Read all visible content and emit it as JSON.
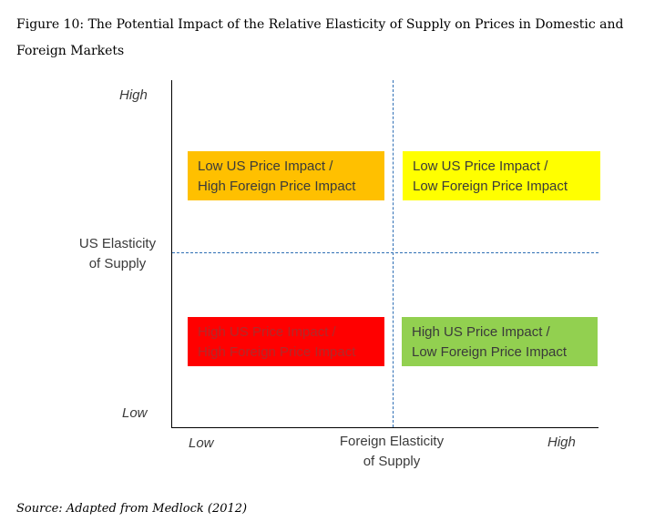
{
  "caption": {
    "line1": "Figure 10: The Potential Impact of the Relative Elasticity of Supply on Prices in Domestic and",
    "line2": "Foreign Markets"
  },
  "y_axis": {
    "high": "High",
    "title_line1": "US Elasticity",
    "title_line2": "of Supply",
    "low": "Low"
  },
  "x_axis": {
    "low": "Low",
    "title_line1": "Foreign Elasticity",
    "title_line2": "of Supply",
    "high": "High"
  },
  "quadrants": [
    {
      "position": "top-left",
      "line1": "Low US Price Impact /",
      "line2": "High Foreign Price Impact",
      "color": "#ffc000",
      "text_color": "#3a3a3a"
    },
    {
      "position": "top-right",
      "line1": "Low US Price Impact /",
      "line2": "Low Foreign Price Impact",
      "color": "#ffff00",
      "text_color": "#3a3a3a"
    },
    {
      "position": "bottom-left",
      "line1": "High US Price Impact /",
      "line2": "High Foreign Price Impact",
      "color": "#ff0000",
      "text_color": "#b02a2a"
    },
    {
      "position": "bottom-right",
      "line1": "High US Price Impact /",
      "line2": "Low Foreign Price Impact",
      "color": "#92d050",
      "text_color": "#3a3a3a"
    }
  ],
  "source": "Source: Adapted from Medlock (2012)"
}
